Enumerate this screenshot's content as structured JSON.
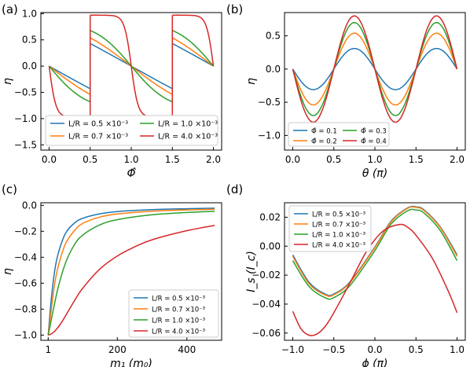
{
  "colors": {
    "blue": "#1f77b4",
    "orange": "#ff7f0e",
    "green": "#2ca02c",
    "red": "#d62728"
  },
  "chart_data": [
    {
      "panel_label": "(a)",
      "type": "line",
      "xlabel": "Φ̂",
      "ylabel": "η",
      "xlim": [
        -0.1,
        2.1
      ],
      "ylim": [
        -1.6,
        1.02
      ],
      "xticks": [
        0.0,
        0.5,
        1.0,
        1.5,
        2.0
      ],
      "xtick_labels": [
        "0.0",
        "0.5",
        "1.0",
        "1.5",
        "2.0"
      ],
      "yticks": [
        1.0,
        0.5,
        0.0,
        -0.5,
        -1.0,
        -1.5
      ],
      "ytick_labels": [
        "1.0",
        "0.5",
        "0.0",
        "−0.5",
        "−1.0",
        "−1.5"
      ],
      "legend_position": "lower-center",
      "legend_columns": 2,
      "series": [
        {
          "name": "L/R = 0.5 ×10⁻³",
          "color": "blue",
          "jump_amplitude": 0.43
        },
        {
          "name": "L/R = 0.7 ×10⁻³",
          "color": "orange",
          "jump_amplitude": 0.54
        },
        {
          "name": "L/R = 1.0 ×10⁻³",
          "color": "green",
          "jump_amplitude": 0.68
        },
        {
          "name": "L/R = 4.0 ×10⁻³",
          "color": "red",
          "jump_amplitude": 0.97
        }
      ]
    },
    {
      "panel_label": "(b)",
      "type": "line",
      "xlabel": "θ (π)",
      "ylabel": "η",
      "xlim": [
        -0.1,
        2.1
      ],
      "ylim": [
        -1.22,
        0.85
      ],
      "xticks": [
        0.0,
        0.5,
        1.0,
        1.5,
        2.0
      ],
      "xtick_labels": [
        "0.0",
        "0.5",
        "1.0",
        "1.5",
        "2.0"
      ],
      "yticks": [
        0.5,
        0.0,
        -0.5,
        -1.0
      ],
      "ytick_labels": [
        "0.5",
        "0.0",
        "−0.5",
        "−1.0"
      ],
      "legend_position": "lower-left",
      "legend_columns": 2,
      "series": [
        {
          "name": "Φ̂ = 0.1",
          "color": "blue",
          "amplitude": 0.31
        },
        {
          "name": "Φ̂ = 0.2",
          "color": "orange",
          "amplitude": 0.54
        },
        {
          "name": "Φ̂ = 0.3",
          "color": "green",
          "amplitude": 0.7
        },
        {
          "name": "Φ̂ = 0.4",
          "color": "red",
          "amplitude": 0.8
        }
      ]
    },
    {
      "panel_label": "(c)",
      "type": "line",
      "xlabel": "m₁ (m₀)",
      "ylabel": "η",
      "xlim": [
        -20,
        500
      ],
      "ylim": [
        -1.04,
        0.02
      ],
      "xticks": [
        1,
        200,
        400
      ],
      "xtick_labels": [
        "1",
        "200",
        "400"
      ],
      "yticks": [
        0.0,
        -0.2,
        -0.4,
        -0.6,
        -0.8,
        -1.0
      ],
      "ytick_labels": [
        "0.0",
        "−0.2",
        "−0.4",
        "−0.6",
        "−0.8",
        "−1.0"
      ],
      "legend_position": "lower-right",
      "legend_columns": 1,
      "series": [
        {
          "name": "L/R = 0.5 ×10⁻³",
          "color": "blue",
          "x": [
            1,
            10,
            20,
            30,
            50,
            75,
            100,
            150,
            200,
            300,
            400,
            480
          ],
          "y": [
            -1.0,
            -0.72,
            -0.5,
            -0.37,
            -0.22,
            -0.14,
            -0.1,
            -0.065,
            -0.048,
            -0.033,
            -0.026,
            -0.022
          ]
        },
        {
          "name": "L/R = 0.7 ×10⁻³",
          "color": "orange",
          "x": [
            1,
            10,
            20,
            30,
            50,
            75,
            100,
            150,
            200,
            300,
            400,
            480
          ],
          "y": [
            -1.0,
            -0.8,
            -0.6,
            -0.47,
            -0.3,
            -0.2,
            -0.14,
            -0.09,
            -0.066,
            -0.045,
            -0.035,
            -0.03
          ]
        },
        {
          "name": "L/R = 1.0 ×10⁻³",
          "color": "green",
          "x": [
            1,
            10,
            20,
            30,
            50,
            75,
            100,
            150,
            200,
            300,
            400,
            480
          ],
          "y": [
            -1.0,
            -0.88,
            -0.75,
            -0.63,
            -0.45,
            -0.31,
            -0.23,
            -0.15,
            -0.11,
            -0.072,
            -0.055,
            -0.046
          ]
        },
        {
          "name": "L/R = 4.0 ×10⁻³",
          "color": "red",
          "x": [
            1,
            10,
            20,
            40,
            60,
            80,
            100,
            150,
            200,
            250,
            300,
            400,
            480
          ],
          "y": [
            -1.0,
            -0.99,
            -0.97,
            -0.9,
            -0.81,
            -0.72,
            -0.64,
            -0.49,
            -0.39,
            -0.32,
            -0.265,
            -0.195,
            -0.155
          ]
        }
      ]
    },
    {
      "panel_label": "(d)",
      "type": "line",
      "xlabel": "ϕ (π)",
      "ylabel": "I_s (I_c)",
      "xlim": [
        -1.1,
        1.1
      ],
      "ylim": [
        -0.065,
        0.03
      ],
      "xticks": [
        -1.0,
        -0.5,
        0.0,
        0.5,
        1.0
      ],
      "xtick_labels": [
        "−1.0",
        "−0.5",
        "0.0",
        "0.5",
        "1.0"
      ],
      "yticks": [
        0.02,
        0.0,
        -0.02,
        -0.04,
        -0.06
      ],
      "ytick_labels": [
        "0.02",
        "0.00",
        "−0.02",
        "−0.04",
        "−0.06"
      ],
      "legend_position": "top-left",
      "legend_columns": 1,
      "series": [
        {
          "name": "L/R = 0.5 ×10⁻³",
          "color": "blue",
          "x": [
            -1.0,
            -0.8,
            -0.6,
            -0.5,
            -0.3,
            0.0,
            0.2,
            0.4,
            0.5,
            0.6,
            0.8,
            1.0
          ],
          "y": [
            -0.006,
            -0.025,
            -0.0332,
            -0.033,
            -0.0245,
            -0.0005,
            0.0175,
            0.0265,
            0.0272,
            0.025,
            0.013,
            -0.006
          ]
        },
        {
          "name": "L/R = 0.7 ×10⁻³",
          "color": "orange",
          "x": [
            -1.0,
            -0.8,
            -0.6,
            -0.5,
            -0.3,
            0.0,
            0.2,
            0.4,
            0.5,
            0.6,
            0.8,
            1.0
          ],
          "y": [
            -0.007,
            -0.026,
            -0.0338,
            -0.0335,
            -0.025,
            -0.001,
            0.017,
            0.0262,
            0.0268,
            0.0245,
            0.0125,
            -0.007
          ]
        },
        {
          "name": "L/R = 1.0 ×10⁻³",
          "color": "green",
          "x": [
            -1.0,
            -0.8,
            -0.6,
            -0.5,
            -0.3,
            0.0,
            0.2,
            0.4,
            0.5,
            0.6,
            0.8,
            1.0
          ],
          "y": [
            -0.01,
            -0.028,
            -0.0358,
            -0.0355,
            -0.027,
            -0.003,
            0.0155,
            0.0245,
            0.025,
            0.0228,
            0.0105,
            -0.01
          ]
        },
        {
          "name": "L/R = 4.0 ×10⁻³",
          "color": "red",
          "x": [
            -1.0,
            -0.9,
            -0.8,
            -0.7,
            -0.6,
            -0.5,
            -0.3,
            -0.1,
            0.1,
            0.3,
            0.4,
            0.5,
            0.7,
            0.9,
            1.0
          ],
          "y": [
            -0.045,
            -0.057,
            -0.0615,
            -0.0605,
            -0.055,
            -0.046,
            -0.025,
            -0.0035,
            0.0105,
            0.015,
            0.013,
            0.0075,
            -0.0085,
            -0.032,
            -0.046
          ]
        }
      ]
    }
  ]
}
